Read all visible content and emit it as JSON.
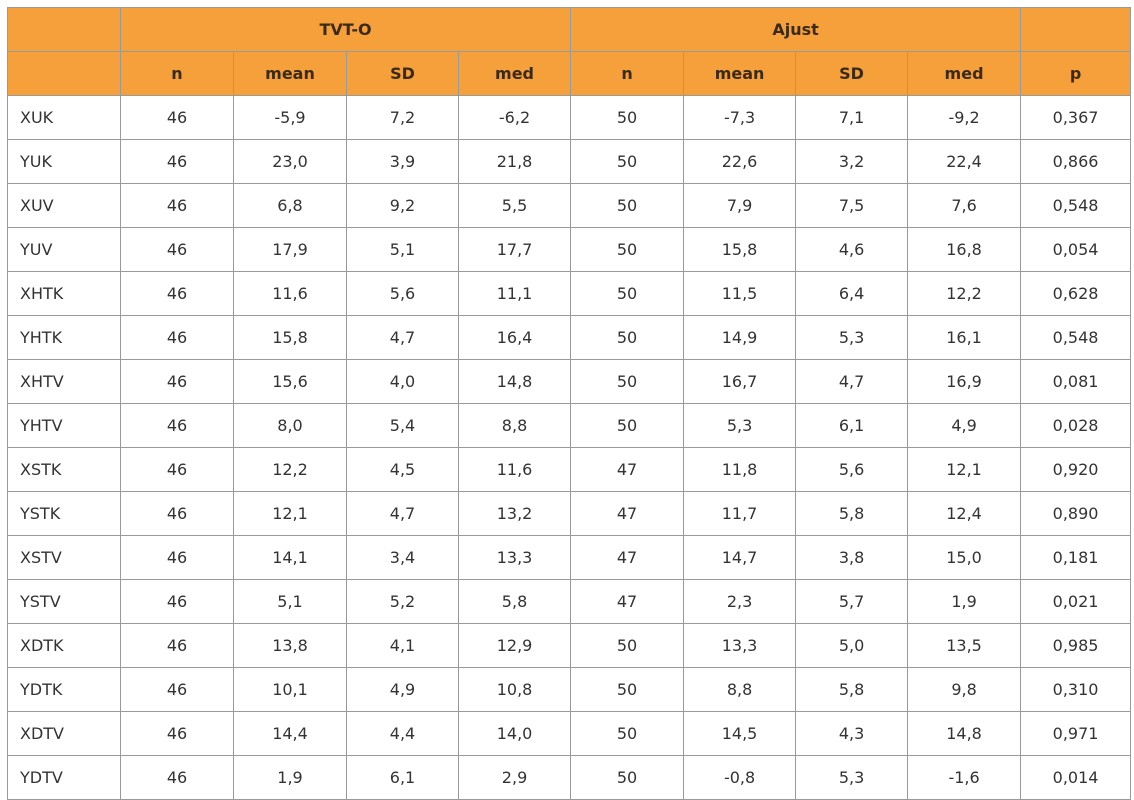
{
  "table": {
    "groups": [
      "TVT-O",
      "Ajust"
    ],
    "columns": [
      "n",
      "mean",
      "SD",
      "med",
      "n",
      "mean",
      "SD",
      "med",
      "p"
    ],
    "rows": [
      [
        "XUK",
        "46",
        "-5,9",
        "7,2",
        "-6,2",
        "50",
        "-7,3",
        "7,1",
        "-9,2",
        "0,367"
      ],
      [
        "YUK",
        "46",
        "23,0",
        "3,9",
        "21,8",
        "50",
        "22,6",
        "3,2",
        "22,4",
        "0,866"
      ],
      [
        "XUV",
        "46",
        "6,8",
        "9,2",
        "5,5",
        "50",
        "7,9",
        "7,5",
        "7,6",
        "0,548"
      ],
      [
        "YUV",
        "46",
        "17,9",
        "5,1",
        "17,7",
        "50",
        "15,8",
        "4,6",
        "16,8",
        "0,054"
      ],
      [
        "XHTK",
        "46",
        "11,6",
        "5,6",
        "11,1",
        "50",
        "11,5",
        "6,4",
        "12,2",
        "0,628"
      ],
      [
        "YHTK",
        "46",
        "15,8",
        "4,7",
        "16,4",
        "50",
        "14,9",
        "5,3",
        "16,1",
        "0,548"
      ],
      [
        "XHTV",
        "46",
        "15,6",
        "4,0",
        "14,8",
        "50",
        "16,7",
        "4,7",
        "16,9",
        "0,081"
      ],
      [
        "YHTV",
        "46",
        "8,0",
        "5,4",
        "8,8",
        "50",
        "5,3",
        "6,1",
        "4,9",
        "0,028"
      ],
      [
        "XSTK",
        "46",
        "12,2",
        "4,5",
        "11,6",
        "47",
        "11,8",
        "5,6",
        "12,1",
        "0,920"
      ],
      [
        "YSTK",
        "46",
        "12,1",
        "4,7",
        "13,2",
        "47",
        "11,7",
        "5,8",
        "12,4",
        "0,890"
      ],
      [
        "XSTV",
        "46",
        "14,1",
        "3,4",
        "13,3",
        "47",
        "14,7",
        "3,8",
        "15,0",
        "0,181"
      ],
      [
        "YSTV",
        "46",
        "5,1",
        "5,2",
        "5,8",
        "47",
        "2,3",
        "5,7",
        "1,9",
        "0,021"
      ],
      [
        "XDTK",
        "46",
        "13,8",
        "4,1",
        "12,9",
        "50",
        "13,3",
        "5,0",
        "13,5",
        "0,985"
      ],
      [
        "YDTK",
        "46",
        "10,1",
        "4,9",
        "10,8",
        "50",
        "8,8",
        "5,8",
        "9,8",
        "0,310"
      ],
      [
        "XDTV",
        "46",
        "14,4",
        "4,4",
        "14,0",
        "50",
        "14,5",
        "4,3",
        "14,8",
        "0,971"
      ],
      [
        "YDTV",
        "46",
        "1,9",
        "6,1",
        "2,9",
        "50",
        "-0,8",
        "5,3",
        "-1,6",
        "0,014"
      ]
    ]
  }
}
